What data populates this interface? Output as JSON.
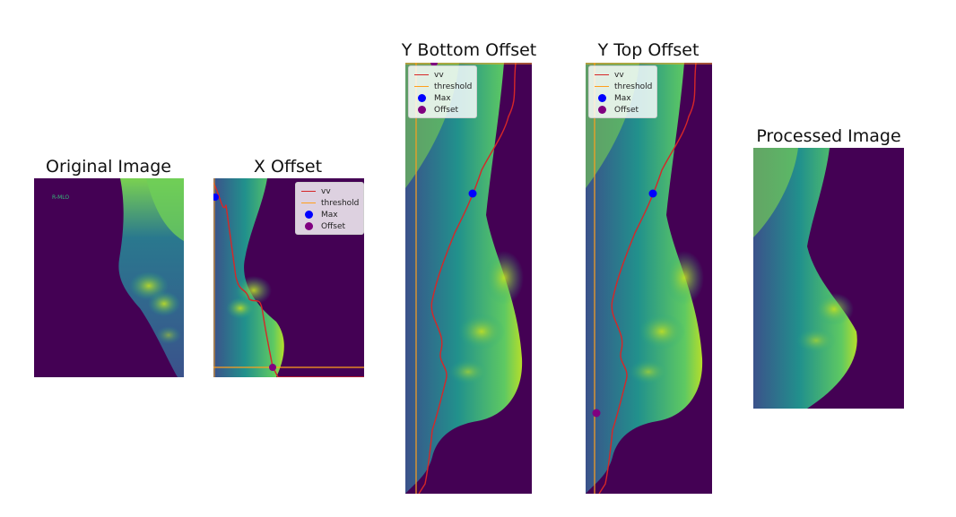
{
  "figure": {
    "panels": [
      {
        "id": "original",
        "title": "Original Image",
        "corner_text": "R-MLO"
      },
      {
        "id": "x_offset",
        "title": "X Offset"
      },
      {
        "id": "y_bottom",
        "title": "Y Bottom Offset"
      },
      {
        "id": "y_top",
        "title": "Y Top Offset"
      },
      {
        "id": "processed",
        "title": "Processed Image"
      }
    ],
    "legend": {
      "items": [
        {
          "label": "vv",
          "kind": "line",
          "color": "#d62728"
        },
        {
          "label": "threshold",
          "kind": "line",
          "color": "#ff9f1c"
        },
        {
          "label": "Max",
          "kind": "marker",
          "color": "#0000ff"
        },
        {
          "label": "Offset",
          "kind": "marker",
          "color": "#800080"
        }
      ]
    },
    "colormap": {
      "background": "#440154",
      "mid": "#2a788e",
      "bright": "#b5de2b",
      "peak": "#fde725"
    }
  }
}
